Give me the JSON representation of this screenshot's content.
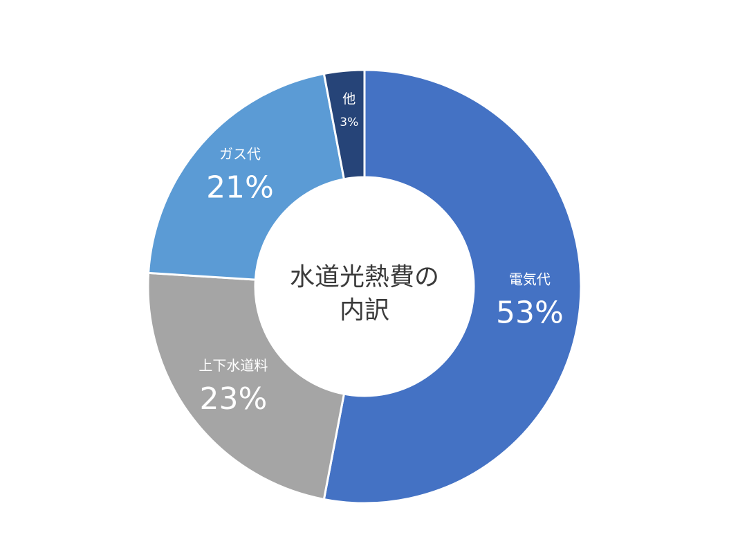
{
  "chart_data": {
    "type": "pie",
    "title": "水道光熱費の内訳",
    "title_lines": [
      "水道光熱費の",
      "内訳"
    ],
    "donut": true,
    "slices": [
      {
        "label": "電気代",
        "value": 53,
        "value_label": "53%",
        "color": "#4472C4"
      },
      {
        "label": "上下水道料",
        "value": 23,
        "value_label": "23%",
        "color": "#A5A5A5"
      },
      {
        "label": "ガス代",
        "value": 21,
        "value_label": "21%",
        "color": "#5B9BD5"
      },
      {
        "label": "他",
        "value": 3,
        "value_label": "3%",
        "color": "#264478"
      }
    ],
    "start_angle": "12 o'clock",
    "direction": "clockwise",
    "legend": "none"
  }
}
